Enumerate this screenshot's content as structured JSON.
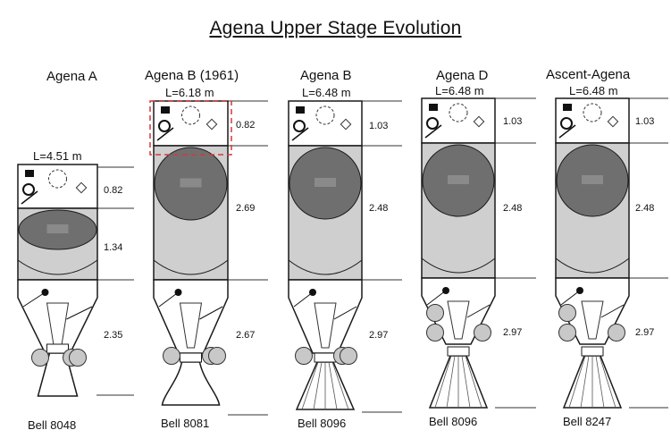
{
  "title": "Agena Upper Stage Evolution",
  "colors": {
    "tank_dark": "#6f6f6f",
    "tank_light": "#cfcfcf",
    "outline": "#1a1a1a",
    "thruster": "#c8c8c8",
    "highlight_dash": "#d23a3a"
  },
  "stages": [
    {
      "name": "Agena A",
      "length": "L=4.51 m",
      "segments": [
        "0.82",
        "1.34",
        "2.35"
      ],
      "engine": "Bell 8048"
    },
    {
      "name": "Agena B (1961)",
      "length": "L=6.18 m",
      "segments": [
        "0.82",
        "2.69",
        "2.67"
      ],
      "engine": "Bell 8081"
    },
    {
      "name": "Agena B",
      "length": "L=6.48 m",
      "segments": [
        "1.03",
        "2.48",
        "2.97"
      ],
      "engine": "Bell 8096"
    },
    {
      "name": "Agena D",
      "length": "L=6.48 m",
      "segments": [
        "1.03",
        "2.48",
        "2.97"
      ],
      "engine": "Bell 8096"
    },
    {
      "name": "Ascent-Agena",
      "length": "L=6.48 m",
      "segments": [
        "1.03",
        "2.48",
        "2.97"
      ],
      "engine": "Bell 8247"
    }
  ]
}
